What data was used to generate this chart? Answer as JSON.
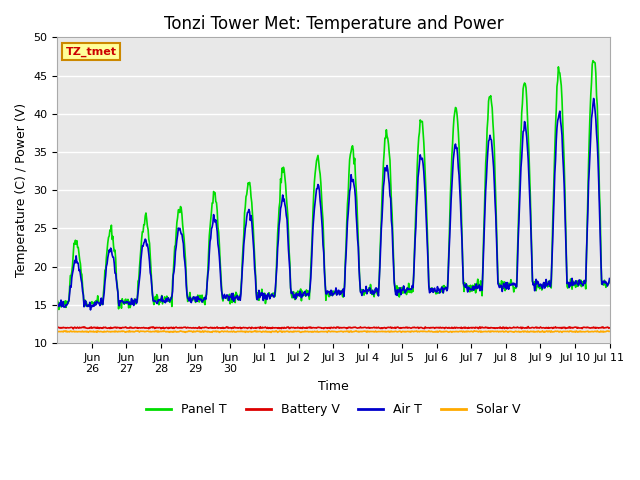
{
  "title": "Tonzi Tower Met: Temperature and Power",
  "xlabel": "Time",
  "ylabel": "Temperature (C) / Power (V)",
  "ylim": [
    10,
    50
  ],
  "yticks": [
    10,
    15,
    20,
    25,
    30,
    35,
    40,
    45,
    50
  ],
  "bg_color": "#e8e8e8",
  "fig_bg_color": "#ffffff",
  "legend_label": "TZ_tmet",
  "legend_box_color": "#ffff99",
  "legend_box_edge": "#cc8800",
  "panel_t_color": "#00dd00",
  "battery_v_color": "#dd0000",
  "air_t_color": "#0000cc",
  "solar_v_color": "#ffaa00",
  "line_width": 1.2,
  "title_fontsize": 12,
  "axis_fontsize": 9,
  "tick_fontsize": 8,
  "legend_fontsize": 9,
  "tick_labels": [
    "Jun\n26",
    "Jun\n27",
    "Jun\n28",
    "Jun\n29",
    "Jun\n30",
    "Jul 1",
    "Jul 2",
    "Jul 3",
    "Jul 4",
    "Jul 5",
    "Jul 6",
    "Jul 7",
    "Jul 8",
    "Jul 9",
    "Jul 10",
    "Jul 11"
  ]
}
